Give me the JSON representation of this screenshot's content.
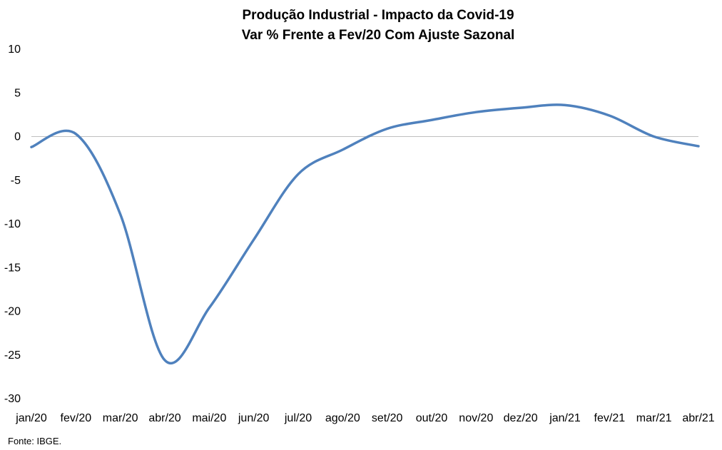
{
  "chart_data": {
    "type": "line",
    "title": "Produção Industrial - Impacto da Covid-19",
    "subtitle": "Var % Frente a Fev/20 Com Ajuste Sazonal",
    "categories": [
      "jan/20",
      "fev/20",
      "mar/20",
      "abr/20",
      "mai/20",
      "jun/20",
      "jul/20",
      "ago/20",
      "set/20",
      "out/20",
      "nov/20",
      "dez/20",
      "jan/21",
      "fev/21",
      "mar/21",
      "abr/21"
    ],
    "series": [
      {
        "values": [
          -1.2,
          0.3,
          -8.9,
          -25.6,
          -19.6,
          -11.8,
          -4.3,
          -1.5,
          0.9,
          1.9,
          2.8,
          3.3,
          3.6,
          2.4,
          0.0,
          -1.1
        ],
        "color": "#4f81bd"
      }
    ],
    "yticks": [
      10,
      5,
      0,
      -5,
      -10,
      -15,
      -20,
      -25,
      -30
    ],
    "ylim": [
      -30,
      10
    ],
    "grid": false,
    "zero_line": true,
    "zero_line_color": "#bfbfbf",
    "legend": "none"
  },
  "source": "Fonte: IBGE."
}
